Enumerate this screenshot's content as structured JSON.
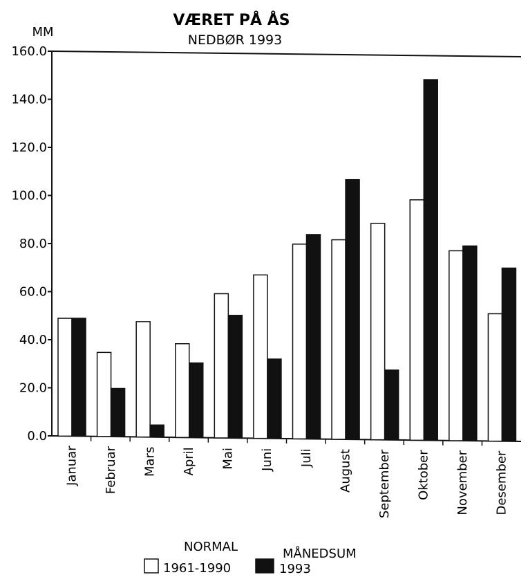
{
  "chart_data": {
    "type": "bar",
    "title": "VÆRET PÅ ÅS",
    "subtitle": "NEDBØR 1993",
    "ylabel": "MM",
    "xlabel": "",
    "ylim": [
      0,
      160
    ],
    "yticks": [
      "0.0",
      "20.0",
      "40.0",
      "60.0",
      "80.0",
      "100.0",
      "120.0",
      "140.0",
      "160.0"
    ],
    "categories": [
      "Januar",
      "Februar",
      "Mars",
      "April",
      "Mai",
      "Juni",
      "Juli",
      "August",
      "September",
      "Oktober",
      "November",
      "Desember"
    ],
    "series": [
      {
        "name": "NORMAL 1961-1990",
        "legend_line1": "NORMAL",
        "legend_line2": "1961-1990",
        "color": "#ffffff",
        "values": [
          49,
          35,
          48,
          39,
          60,
          68,
          81,
          83,
          90,
          100,
          79,
          53
        ]
      },
      {
        "name": "MÅNEDSUM 1993",
        "legend_line1": "MÅNEDSUM",
        "legend_line2": "1993",
        "color": "#111111",
        "values": [
          49,
          20,
          5,
          31,
          51,
          33,
          85,
          108,
          29,
          150,
          81,
          72
        ]
      }
    ],
    "grid": false,
    "legend_position": "bottom"
  }
}
